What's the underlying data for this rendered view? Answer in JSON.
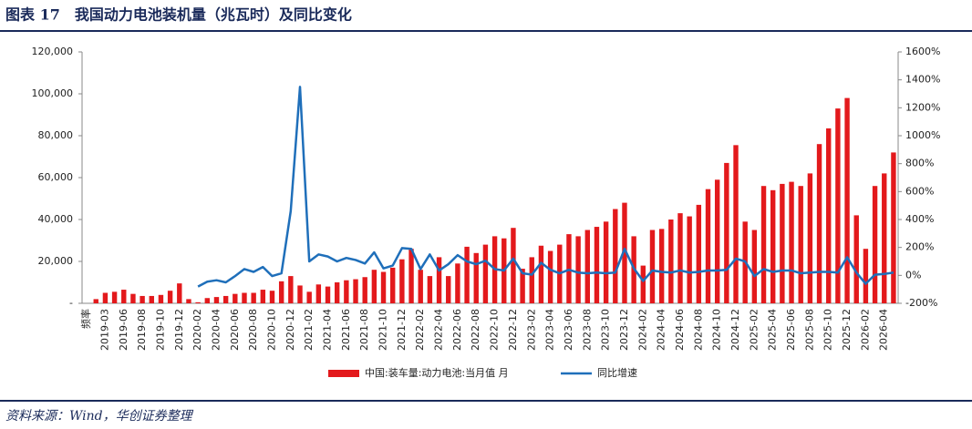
{
  "chart_data": {
    "type": "bar_line",
    "title": "图表 17　我国动力电池装机量（兆瓦时）及同比变化",
    "source": "资料来源：Wind，华创证券整理",
    "categories": [
      "频率",
      null,
      "2019-03",
      null,
      "2019-06",
      null,
      "2019-08",
      null,
      "2019-10",
      null,
      "2019-12",
      null,
      "2020-02",
      null,
      "2020-04",
      null,
      "2020-06",
      null,
      "2020-08",
      null,
      "2020-10",
      null,
      "2020-12",
      null,
      "2021-02",
      null,
      "2021-04",
      null,
      "2021-06",
      null,
      "2021-08",
      null,
      "2021-10",
      null,
      "2021-12",
      null,
      "2022-02",
      null,
      "2022-04",
      null,
      "2022-06",
      null,
      "2022-08",
      null,
      "2022-10",
      null,
      "2022-12",
      null,
      "2023-02",
      null,
      "2023-04",
      null,
      "2023-06",
      null,
      "2023-08",
      null,
      "2023-10",
      null,
      "2023-12",
      null,
      "2024-02",
      null,
      "2024-04",
      null,
      "2024-06",
      null,
      "2024-08",
      null,
      "2024-10",
      null,
      "2024-12",
      null,
      "2025-02",
      null,
      "2025-04",
      null,
      "2025-06",
      null,
      "2025-08",
      null,
      "2025-10",
      null,
      "2025-12",
      null,
      "2026-02",
      null,
      "2026-04",
      null
    ],
    "series": [
      {
        "name": "中国:装车量:动力电池:当月值 月",
        "type": "bar",
        "color": "#e3191c",
        "values": [
          null,
          2000,
          5000,
          5500,
          6500,
          4500,
          3500,
          3500,
          4000,
          6000,
          9500,
          2000,
          500,
          2500,
          3000,
          3500,
          4500,
          5000,
          5000,
          6500,
          6000,
          10500,
          13000,
          8500,
          5500,
          9000,
          8000,
          10000,
          11000,
          11500,
          12500,
          16000,
          15000,
          17000,
          21000,
          26000,
          16000,
          13000,
          22000,
          13000,
          19000,
          27000,
          24000,
          28000,
          32000,
          31000,
          36000,
          16500,
          22000,
          27500,
          25000,
          28000,
          33000,
          32000,
          35000,
          36500,
          39000,
          45000,
          48000,
          32000,
          18000,
          35000,
          35500,
          40000,
          43000,
          41500,
          47000,
          54500,
          59000,
          67000,
          75500,
          39000,
          35000,
          56000,
          54000,
          57000,
          58000,
          56000,
          62000,
          76000,
          83500,
          93000,
          98000,
          42000,
          26000,
          56000,
          62000,
          72000
        ]
      },
      {
        "name": "同比增速",
        "type": "line",
        "color": "#1f6fba",
        "axis": "y2",
        "values": [
          null,
          null,
          null,
          null,
          null,
          null,
          null,
          null,
          null,
          null,
          null,
          null,
          -80,
          -45,
          -35,
          -50,
          -5,
          45,
          25,
          60,
          -5,
          15,
          460,
          1350,
          100,
          150,
          135,
          100,
          125,
          110,
          85,
          165,
          50,
          70,
          195,
          190,
          45,
          150,
          35,
          80,
          145,
          100,
          80,
          105,
          45,
          35,
          120,
          15,
          5,
          90,
          40,
          15,
          40,
          20,
          15,
          20,
          15,
          20,
          190,
          50,
          -40,
          35,
          25,
          20,
          35,
          20,
          25,
          35,
          35,
          40,
          120,
          100,
          -5,
          45,
          25,
          35,
          35,
          15,
          20,
          25,
          25,
          20,
          130,
          20,
          -60,
          5,
          10,
          20
        ]
      }
    ],
    "ylim": [
      0,
      120000
    ],
    "yticks": [
      {
        "value": 0,
        "label": "-"
      },
      {
        "value": 20000,
        "label": "20,000"
      },
      {
        "value": 40000,
        "label": "40,000"
      },
      {
        "value": 60000,
        "label": "60,000"
      },
      {
        "value": 80000,
        "label": "80,000"
      },
      {
        "value": 100000,
        "label": "100,000"
      },
      {
        "value": 120000,
        "label": "120,000"
      }
    ],
    "y2lim": [
      -200,
      1600
    ],
    "y2ticks": [
      {
        "value": -200,
        "label": "-200%"
      },
      {
        "value": 0,
        "label": "0%"
      },
      {
        "value": 200,
        "label": "200%"
      },
      {
        "value": 400,
        "label": "400%"
      },
      {
        "value": 600,
        "label": "600%"
      },
      {
        "value": 800,
        "label": "800%"
      },
      {
        "value": 1000,
        "label": "1000%"
      },
      {
        "value": 1200,
        "label": "1200%"
      },
      {
        "value": 1400,
        "label": "1400%"
      },
      {
        "value": 1600,
        "label": "1600%"
      }
    ],
    "legend": "bottom"
  }
}
